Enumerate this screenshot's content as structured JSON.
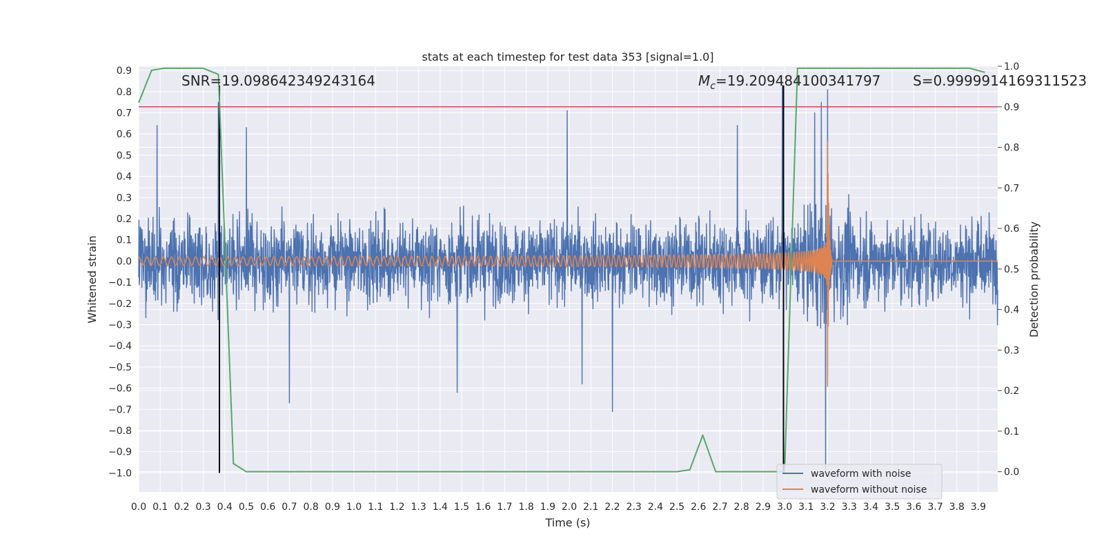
{
  "chart_data": {
    "type": "line",
    "title": "stats at each timestep for test data 353 [signal=1.0]",
    "xlabel": "Time (s)",
    "ylabel": "Whitened strain",
    "y2label": "Detection probability",
    "xlim": [
      0.0,
      3.99
    ],
    "ylim": [
      -1.09,
      0.92
    ],
    "y2lim": [
      -0.05,
      1.0
    ],
    "x_ticks": [
      0.0,
      0.1,
      0.2,
      0.3,
      0.4,
      0.5,
      0.6,
      0.7,
      0.8,
      0.9,
      1.0,
      1.1,
      1.2,
      1.3,
      1.4,
      1.5,
      1.6,
      1.7,
      1.8,
      1.9,
      2.0,
      2.1,
      2.2,
      2.3,
      2.4,
      2.5,
      2.6,
      2.7,
      2.8,
      2.9,
      3.0,
      3.1,
      3.2,
      3.3,
      3.4,
      3.5,
      3.6,
      3.7,
      3.8,
      3.9
    ],
    "x_tick_labels": [
      "0.0",
      "0.1",
      "0.2",
      "0.3",
      "0.4",
      "0.5",
      "0.6",
      "0.7",
      "0.8",
      "0.9",
      "1.0",
      "1.1",
      "1.2",
      "1.3",
      "1.4",
      "1.5",
      "1.6",
      "1.7",
      "1.8",
      "1.9",
      "2.0",
      "2.1",
      "2.2",
      "2.3",
      "2.4",
      "2.5",
      "2.6",
      "2.7",
      "2.8",
      "2.9",
      "3.0",
      "3.1",
      "3.2",
      "3.3",
      "3.4",
      "3.5",
      "3.6",
      "3.7",
      "3.8",
      "3.9"
    ],
    "y_ticks": [
      0.9,
      0.8,
      0.7,
      0.6,
      0.5,
      0.4,
      0.3,
      0.2,
      0.1,
      0.0,
      -0.1,
      -0.2,
      -0.3,
      -0.4,
      -0.5,
      -0.6,
      -0.7,
      -0.8,
      -0.9,
      -1.0
    ],
    "y_tick_labels": [
      "0.9",
      "0.8",
      "0.7",
      "0.6",
      "0.5",
      "0.4",
      "0.3",
      "0.2",
      "0.1",
      "0.0",
      "−0.1",
      "−0.2",
      "−0.3",
      "−0.4",
      "−0.5",
      "−0.6",
      "−0.7",
      "−0.8",
      "−0.9",
      "−1.0"
    ],
    "y2_ticks": [
      1.0,
      0.9,
      0.8,
      0.7,
      0.6,
      0.5,
      0.4,
      0.3,
      0.2,
      0.1,
      0.0
    ],
    "y2_tick_labels": [
      "1.0",
      "0.9",
      "0.8",
      "0.7",
      "0.6",
      "0.5",
      "0.4",
      "0.3",
      "0.2",
      "0.1",
      "0.0"
    ],
    "grid": true,
    "legend_position": "lower-right",
    "annotations": {
      "snr": "SNR=19.098642349243164",
      "mc_symbol": "M",
      "mc_subscript": "c",
      "mc_value": "=19.209484100341797",
      "s": "S=0.9999914169311523"
    },
    "threshold": {
      "axis": "y2",
      "value": 0.9,
      "color": "#c44e52"
    },
    "vlines": [
      {
        "x": 0.375,
        "ymin": -1.0,
        "ymax": 0.83
      },
      {
        "x": 2.995,
        "ymin": -1.0,
        "ymax": 0.83
      }
    ],
    "series": [
      {
        "name": "waveform with noise",
        "axis": "y",
        "color": "#4c72b0",
        "kind": "noise",
        "sigma": 0.16,
        "x_range": [
          0.0,
          3.99
        ],
        "peaks": [
          {
            "x": 0.085,
            "y": 0.64
          },
          {
            "x": 0.37,
            "y": 0.75
          },
          {
            "x": 0.5,
            "y": 0.63
          },
          {
            "x": 0.7,
            "y": -0.67
          },
          {
            "x": 1.48,
            "y": -0.62
          },
          {
            "x": 1.99,
            "y": 0.71
          },
          {
            "x": 2.2,
            "y": -0.71
          },
          {
            "x": 2.06,
            "y": -0.58
          },
          {
            "x": 2.78,
            "y": 0.64
          },
          {
            "x": 2.99,
            "y": 0.83
          },
          {
            "x": 3.2,
            "y": 0.81
          },
          {
            "x": 3.19,
            "y": -0.99
          },
          {
            "x": 3.17,
            "y": 0.75
          },
          {
            "x": 3.14,
            "y": 0.7
          }
        ]
      },
      {
        "name": "waveform without noise",
        "axis": "y",
        "color": "#dd8452",
        "kind": "chirp",
        "merger_time": 3.2,
        "ringdown_end": 3.22,
        "amp_start": 0.02,
        "amp_peak": 0.62,
        "freq_start": 26
      },
      {
        "name": "detection probability",
        "axis": "y2",
        "color": "#55a868",
        "x": [
          0.0,
          0.06,
          0.12,
          0.18,
          0.24,
          0.3,
          0.37,
          0.44,
          0.5,
          0.56,
          2.5,
          2.56,
          2.62,
          2.68,
          2.75,
          3.0,
          3.06,
          3.12,
          3.3,
          3.5,
          3.7,
          3.86,
          3.93
        ],
        "values": [
          0.91,
          0.99,
          0.995,
          0.995,
          0.995,
          0.995,
          0.98,
          0.02,
          0.0,
          0.0,
          0.0,
          0.005,
          0.09,
          0.0,
          0.0,
          0.0,
          0.995,
          0.995,
          0.995,
          0.995,
          0.995,
          0.995,
          0.985
        ]
      }
    ]
  }
}
